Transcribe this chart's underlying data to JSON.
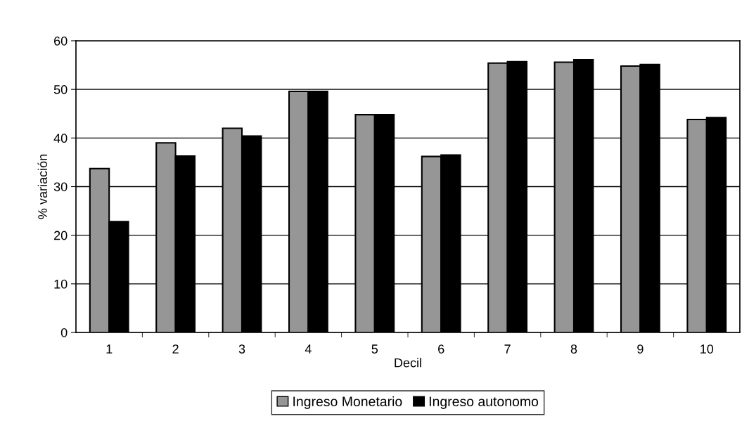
{
  "chart_data": {
    "type": "bar",
    "xlabel": "Decil",
    "ylabel": "% variación",
    "categories": [
      "1",
      "2",
      "3",
      "4",
      "5",
      "6",
      "7",
      "8",
      "9",
      "10"
    ],
    "series": [
      {
        "name": "Ingreso Monetario",
        "color": "#969696",
        "values": [
          33.7,
          39.0,
          42.0,
          49.6,
          44.8,
          36.2,
          55.4,
          55.6,
          54.8,
          43.8
        ]
      },
      {
        "name": "Ingreso autonomo",
        "color": "#000000",
        "values": [
          22.8,
          36.3,
          40.4,
          49.6,
          44.8,
          36.5,
          55.7,
          56.1,
          55.1,
          44.2
        ]
      }
    ],
    "ylim": [
      0,
      60
    ],
    "yticks": [
      0,
      10,
      20,
      30,
      40,
      50,
      60
    ],
    "grid": "y",
    "legend": "bottom"
  }
}
